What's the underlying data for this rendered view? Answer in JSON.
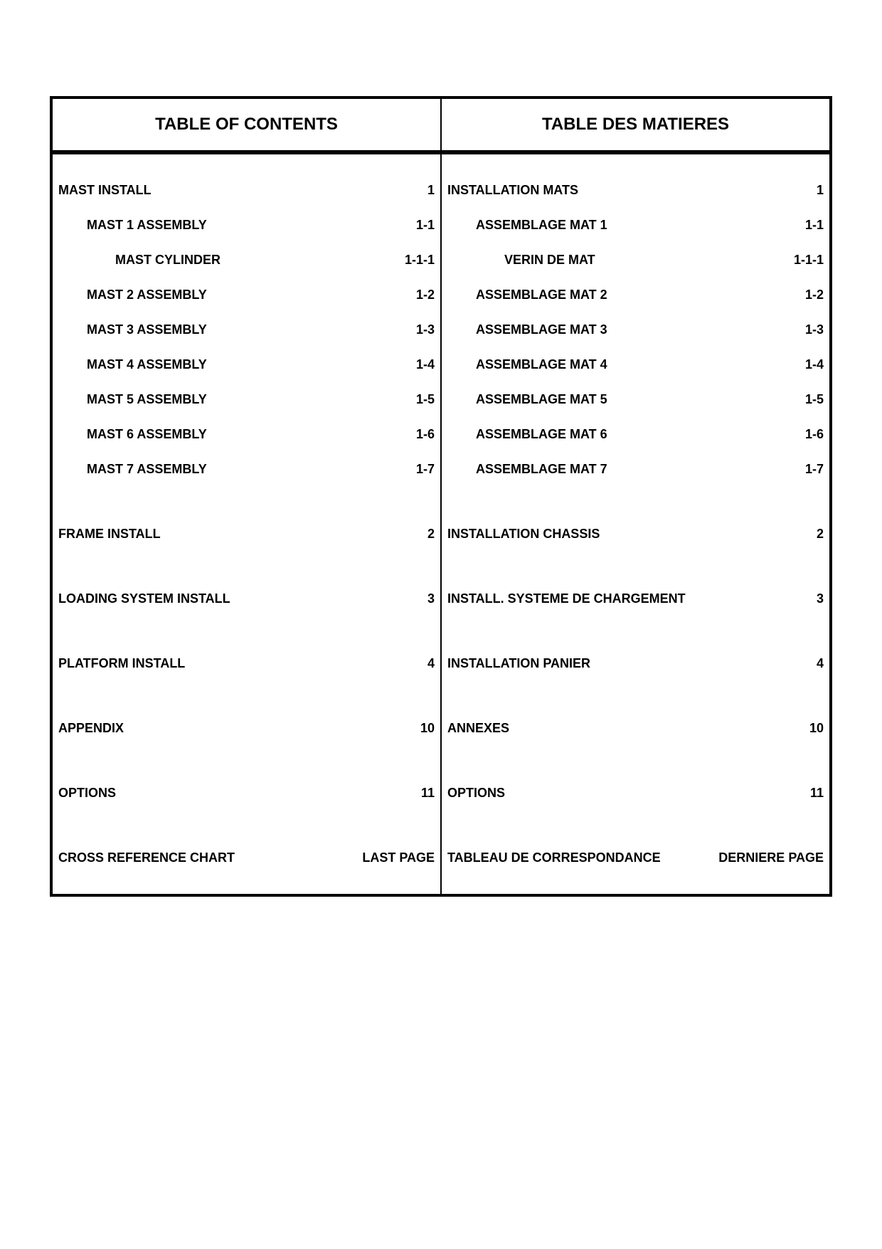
{
  "header": {
    "left": "TABLE OF CONTENTS",
    "right": "TABLE DES MATIERES"
  },
  "left_column": [
    {
      "label": "MAST INSTALL",
      "page": "1",
      "level": 0
    },
    {
      "label": "MAST 1 ASSEMBLY",
      "page": "1-1",
      "level": 1
    },
    {
      "label": "MAST CYLINDER",
      "page": "1-1-1",
      "level": 2
    },
    {
      "label": "MAST 2 ASSEMBLY",
      "page": "1-2",
      "level": 1
    },
    {
      "label": "MAST 3 ASSEMBLY",
      "page": "1-3",
      "level": 1
    },
    {
      "label": "MAST 4 ASSEMBLY",
      "page": "1-4",
      "level": 1
    },
    {
      "label": "MAST 5 ASSEMBLY",
      "page": "1-5",
      "level": 1
    },
    {
      "label": "MAST 6 ASSEMBLY",
      "page": "1-6",
      "level": 1
    },
    {
      "label": "MAST 7 ASSEMBLY",
      "page": "1-7",
      "level": 1
    },
    {
      "label": "FRAME INSTALL",
      "page": "2",
      "level": 0
    },
    {
      "label": "LOADING SYSTEM INSTALL",
      "page": "3",
      "level": 0
    },
    {
      "label": "PLATFORM INSTALL",
      "page": "4",
      "level": 0
    },
    {
      "label": "APPENDIX",
      "page": "10",
      "level": 0
    },
    {
      "label": "OPTIONS",
      "page": "11",
      "level": 0
    },
    {
      "label": "CROSS REFERENCE CHART",
      "page": "LAST PAGE",
      "level": 0
    }
  ],
  "right_column": [
    {
      "label": "INSTALLATION MATS",
      "page": "1",
      "level": 0
    },
    {
      "label": "ASSEMBLAGE MAT 1",
      "page": "1-1",
      "level": 1
    },
    {
      "label": "VERIN DE MAT",
      "page": "1-1-1",
      "level": 2
    },
    {
      "label": "ASSEMBLAGE MAT 2",
      "page": "1-2",
      "level": 1
    },
    {
      "label": "ASSEMBLAGE MAT 3",
      "page": "1-3",
      "level": 1
    },
    {
      "label": "ASSEMBLAGE MAT 4",
      "page": "1-4",
      "level": 1
    },
    {
      "label": "ASSEMBLAGE MAT 5",
      "page": "1-5",
      "level": 1
    },
    {
      "label": "ASSEMBLAGE MAT 6",
      "page": "1-6",
      "level": 1
    },
    {
      "label": "ASSEMBLAGE MAT 7",
      "page": "1-7",
      "level": 1
    },
    {
      "label": "INSTALLATION CHASSIS",
      "page": "2",
      "level": 0
    },
    {
      "label": "INSTALL. SYSTEME DE CHARGEMENT",
      "page": "3",
      "level": 0
    },
    {
      "label": "INSTALLATION PANIER",
      "page": "4",
      "level": 0
    },
    {
      "label": "ANNEXES",
      "page": "10",
      "level": 0
    },
    {
      "label": "OPTIONS",
      "page": "11",
      "level": 0
    },
    {
      "label": "TABLEAU DE CORRESPONDANCE",
      "page": "DERNIERE PAGE",
      "level": 0
    }
  ]
}
